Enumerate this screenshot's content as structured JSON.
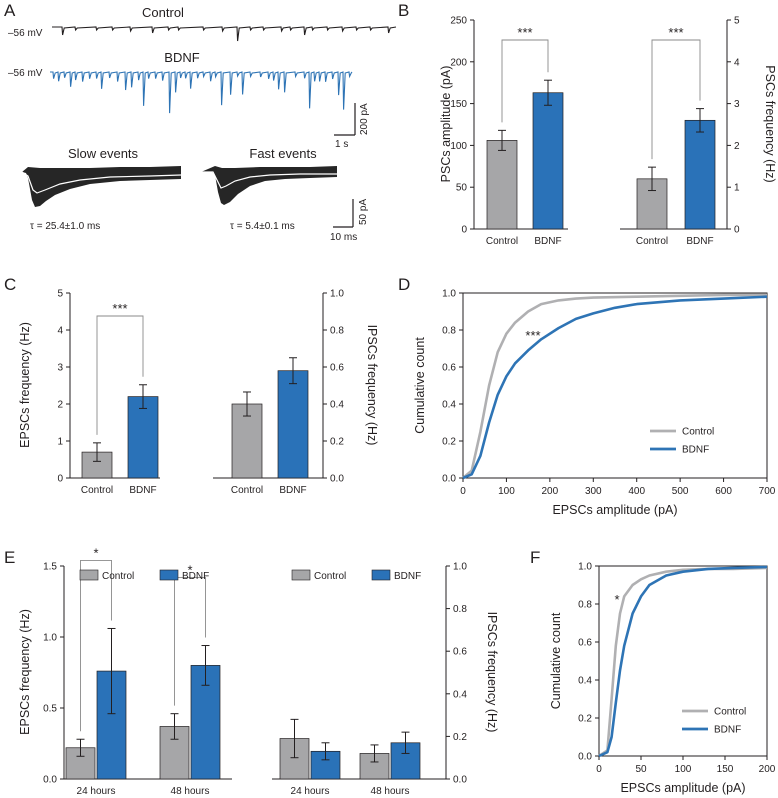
{
  "colors": {
    "control": "#a6a6a8",
    "bdnf": "#2a72b8",
    "black": "#231f20",
    "control_line": "#b0b0b2",
    "bdnf_line": "#2e74b5",
    "trace_fill": "#262626"
  },
  "panel_a": {
    "letter": "A",
    "control_label": "Control",
    "bdnf_label": "BDNF",
    "control_voltage": "–56 mV",
    "bdnf_voltage": "–56 mV",
    "scale_time": "1 s",
    "scale_amp": "200 pA",
    "slow_title": "Slow events",
    "fast_title": "Fast events",
    "slow_tau": "τ = 25.4±1.0 ms",
    "fast_tau": "τ = 5.4±0.1 ms",
    "scale2_time": "10 ms",
    "scale2_amp": "50 pA"
  },
  "panel_b": {
    "letter": "B"
  },
  "panel_c": {
    "letter": "C"
  },
  "panel_d": {
    "letter": "D"
  },
  "panel_e": {
    "letter": "E"
  },
  "panel_f": {
    "letter": "F"
  },
  "chart_data": [
    {
      "id": "B-left",
      "type": "bar",
      "categories": [
        "Control",
        "BDNF"
      ],
      "values": [
        106,
        163
      ],
      "errors": [
        12,
        15
      ],
      "ylabel": "PSCs amplitude (pA)",
      "ylim": [
        0,
        250
      ],
      "yticks": [
        "0",
        "50",
        "100",
        "150",
        "200",
        "250"
      ],
      "significance": "***"
    },
    {
      "id": "B-right",
      "type": "bar",
      "categories": [
        "Control",
        "BDNF"
      ],
      "values": [
        1.2,
        2.6
      ],
      "errors": [
        0.28,
        0.28
      ],
      "ylabel": "PSCs frequency (Hz)",
      "ylim": [
        0,
        5
      ],
      "yticks": [
        "0",
        "1",
        "2",
        "3",
        "4",
        "5"
      ],
      "significance": "***"
    },
    {
      "id": "C-left",
      "type": "bar",
      "categories": [
        "Control",
        "BDNF"
      ],
      "values": [
        0.7,
        2.2
      ],
      "errors": [
        0.25,
        0.32
      ],
      "ylabel": "EPSCs frequency (Hz)",
      "ylim": [
        0,
        5
      ],
      "yticks": [
        "0",
        "1",
        "2",
        "3",
        "4",
        "5"
      ],
      "significance": "***"
    },
    {
      "id": "C-right",
      "type": "bar",
      "categories": [
        "Control",
        "BDNF"
      ],
      "values": [
        0.4,
        0.58
      ],
      "errors": [
        0.065,
        0.07
      ],
      "ylabel": "IPSCs frequency (Hz)",
      "ylim": [
        0,
        1
      ],
      "yticks": [
        "0.0",
        "0.2",
        "0.4",
        "0.6",
        "0.8",
        "1.0"
      ]
    },
    {
      "id": "D",
      "type": "line",
      "xlabel": "EPSCs amplitude (pA)",
      "ylabel": "Cumulative count",
      "xlim": [
        0,
        700
      ],
      "ylim": [
        0,
        1
      ],
      "xticks": [
        "0",
        "100",
        "200",
        "300",
        "400",
        "500",
        "600",
        "700"
      ],
      "yticks": [
        "0.0",
        "0.2",
        "0.4",
        "0.6",
        "0.8",
        "1.0"
      ],
      "annotation": "***",
      "legend": [
        "Control",
        "BDNF"
      ],
      "series": [
        {
          "name": "Control",
          "x": [
            0,
            20,
            40,
            60,
            80,
            100,
            120,
            150,
            180,
            220,
            260,
            300,
            400,
            500,
            600,
            700
          ],
          "y": [
            0,
            0.04,
            0.25,
            0.5,
            0.68,
            0.78,
            0.84,
            0.9,
            0.94,
            0.96,
            0.97,
            0.975,
            0.98,
            0.985,
            0.99,
            0.99
          ]
        },
        {
          "name": "BDNF",
          "x": [
            0,
            20,
            40,
            60,
            80,
            100,
            120,
            150,
            180,
            220,
            260,
            300,
            350,
            400,
            500,
            600,
            700
          ],
          "y": [
            0,
            0.02,
            0.12,
            0.3,
            0.45,
            0.55,
            0.62,
            0.69,
            0.75,
            0.81,
            0.86,
            0.89,
            0.92,
            0.94,
            0.96,
            0.97,
            0.98
          ]
        }
      ]
    },
    {
      "id": "E-left",
      "type": "bar",
      "categories": [
        "24 hours",
        "48 hours"
      ],
      "series": [
        {
          "name": "Control",
          "values": [
            0.22,
            0.37
          ],
          "errors": [
            0.06,
            0.09
          ]
        },
        {
          "name": "BDNF",
          "values": [
            0.76,
            0.8
          ],
          "errors": [
            0.3,
            0.14
          ]
        }
      ],
      "ylabel": "EPSCs frequency (Hz)",
      "ylim": [
        0,
        1.5
      ],
      "yticks": [
        "0.0",
        "0.5",
        "1.0",
        "1.5"
      ],
      "significance": [
        "*",
        "*"
      ]
    },
    {
      "id": "E-right",
      "type": "bar",
      "categories": [
        "24 hours",
        "48 hours"
      ],
      "series": [
        {
          "name": "Control",
          "values": [
            0.19,
            0.12
          ],
          "errors": [
            0.09,
            0.04
          ]
        },
        {
          "name": "BDNF",
          "values": [
            0.13,
            0.17
          ],
          "errors": [
            0.04,
            0.05
          ]
        }
      ],
      "ylabel": "IPSCs frequency (Hz)",
      "ylim": [
        0,
        1
      ],
      "yticks": [
        "0.0",
        "0.2",
        "0.4",
        "0.6",
        "0.8",
        "1.0"
      ]
    },
    {
      "id": "F",
      "type": "line",
      "xlabel": "EPSCs amplitude (pA)",
      "ylabel": "Cumulative count",
      "xlim": [
        0,
        200
      ],
      "ylim": [
        0,
        1
      ],
      "xticks": [
        "0",
        "50",
        "100",
        "150",
        "200"
      ],
      "yticks": [
        "0.0",
        "0.2",
        "0.4",
        "0.6",
        "0.8",
        "1.0"
      ],
      "annotation": "*",
      "legend": [
        "Control",
        "BDNF"
      ],
      "series": [
        {
          "name": "Control",
          "x": [
            0,
            10,
            15,
            20,
            25,
            30,
            40,
            50,
            60,
            80,
            100,
            130,
            160,
            200
          ],
          "y": [
            0,
            0.03,
            0.3,
            0.58,
            0.75,
            0.84,
            0.9,
            0.93,
            0.95,
            0.97,
            0.98,
            0.985,
            0.985,
            0.99
          ]
        },
        {
          "name": "BDNF",
          "x": [
            0,
            10,
            15,
            20,
            25,
            30,
            40,
            50,
            60,
            80,
            100,
            130,
            160,
            200
          ],
          "y": [
            0,
            0.02,
            0.1,
            0.28,
            0.45,
            0.58,
            0.75,
            0.84,
            0.9,
            0.95,
            0.97,
            0.985,
            0.99,
            0.995
          ]
        }
      ]
    }
  ]
}
